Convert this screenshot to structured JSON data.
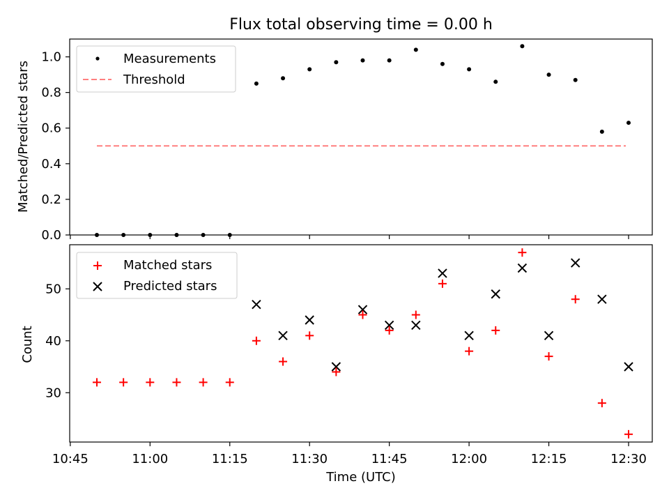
{
  "chart_data": [
    {
      "type": "scatter",
      "title": "Flux total observing time = 0.00 h",
      "xlabel": "",
      "ylabel": "Matched/Predicted stars",
      "ylim": [
        0.0,
        1.1
      ],
      "yticks": [
        0.0,
        0.2,
        0.4,
        0.6,
        0.8,
        1.0
      ],
      "ytick_labels": [
        "0.0",
        "0.2",
        "0.4",
        "0.6",
        "0.8",
        "1.0"
      ],
      "x": [
        "10:50",
        "10:55",
        "11:00",
        "11:05",
        "11:10",
        "11:15",
        "11:20",
        "11:25",
        "11:30",
        "11:35",
        "11:40",
        "11:45",
        "11:50",
        "11:55",
        "12:00",
        "12:05",
        "12:10",
        "12:15",
        "12:20",
        "12:25",
        "12:30"
      ],
      "series": [
        {
          "name": "Measurements",
          "color": "#000000",
          "values": [
            0.0,
            0.0,
            0.0,
            0.0,
            0.0,
            0.0,
            0.85,
            0.88,
            0.93,
            0.97,
            0.98,
            0.98,
            1.04,
            0.96,
            0.93,
            0.86,
            1.06,
            0.9,
            0.87,
            0.58,
            0.63
          ]
        },
        {
          "name": "Threshold",
          "color": "#ff7f7f",
          "style": "dashed",
          "x_range": [
            "10:50",
            "12:30"
          ],
          "values": [
            0.5,
            0.5
          ]
        }
      ],
      "legend": "top-left"
    },
    {
      "type": "scatter",
      "title": "",
      "xlabel": "Time (UTC)",
      "ylabel": "Count",
      "ylim": [
        20.5,
        58.5
      ],
      "yticks": [
        30,
        40,
        50
      ],
      "ytick_labels": [
        "30",
        "40",
        "50"
      ],
      "x": [
        "10:50",
        "10:55",
        "11:00",
        "11:05",
        "11:10",
        "11:15",
        "11:20",
        "11:25",
        "11:30",
        "11:35",
        "11:40",
        "11:45",
        "11:50",
        "11:55",
        "12:00",
        "12:05",
        "12:10",
        "12:15",
        "12:20",
        "12:25",
        "12:30"
      ],
      "xticks": [
        "10:45",
        "11:00",
        "11:15",
        "11:30",
        "11:45",
        "12:00",
        "12:15",
        "12:30"
      ],
      "series": [
        {
          "name": "Matched stars",
          "color": "#ff0000",
          "marker": "+",
          "values": [
            32,
            32,
            32,
            32,
            32,
            32,
            40,
            36,
            41,
            34,
            45,
            42,
            45,
            51,
            38,
            42,
            57,
            37,
            48,
            28,
            22
          ]
        },
        {
          "name": "Predicted stars",
          "color": "#000000",
          "marker": "x",
          "values": [
            null,
            null,
            null,
            null,
            null,
            null,
            47,
            41,
            44,
            35,
            46,
            43,
            43,
            53,
            41,
            49,
            54,
            41,
            55,
            48,
            35
          ]
        }
      ],
      "legend": "top-left"
    }
  ]
}
